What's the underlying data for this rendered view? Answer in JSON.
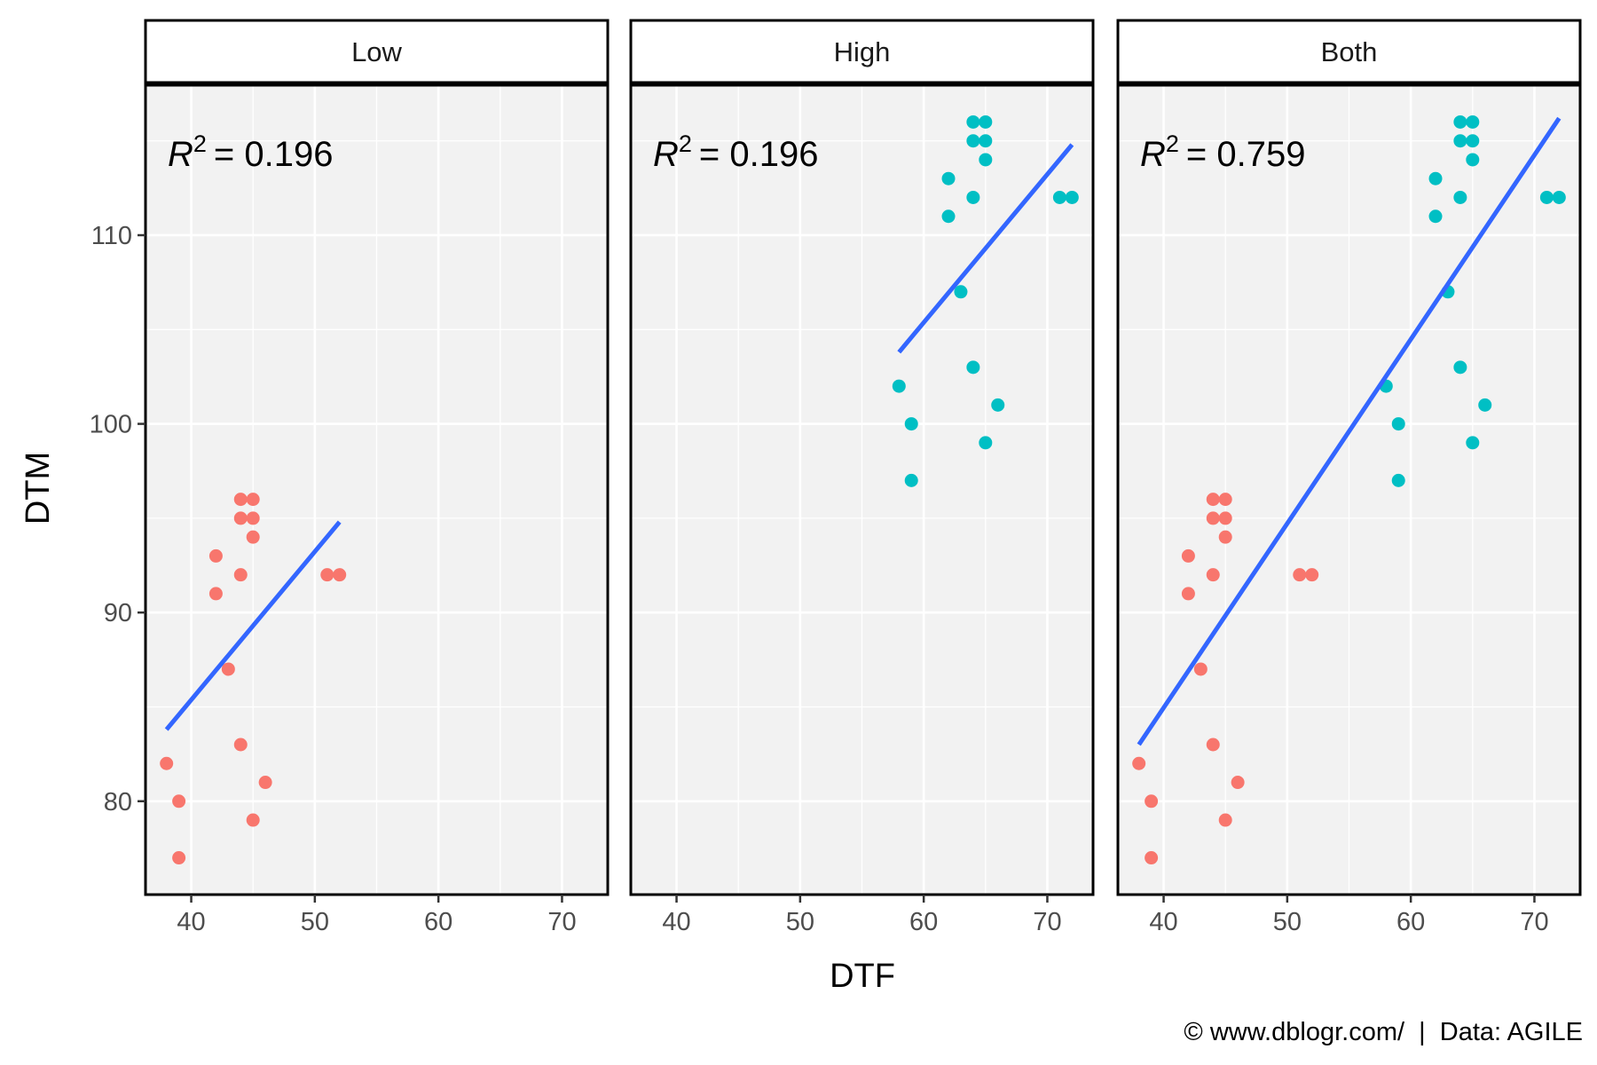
{
  "chart_data": {
    "type": "scatter",
    "xlabel": "DTF",
    "ylabel": "DTM",
    "xlim": [
      36.3,
      73.7
    ],
    "ylim": [
      75.05,
      117.95
    ],
    "x_ticks": [
      40,
      50,
      60,
      70
    ],
    "y_ticks": [
      80,
      90,
      100,
      110
    ],
    "grid": true,
    "legend": "none",
    "caption": "© www.dblogr.com/  |  Data: AGILE",
    "colors": {
      "low": "#F8766D",
      "high": "#00BFC4",
      "fit": "#3366FF",
      "panel_bg": "#F2F2F2",
      "grid": "#FFFFFF"
    },
    "panels": [
      {
        "strip": "Low",
        "r2_label": "R",
        "r2_sup": "2",
        "r2_value": "= 0.196",
        "points": [
          {
            "x": 38,
            "y": 82,
            "group": "low"
          },
          {
            "x": 39,
            "y": 80,
            "group": "low"
          },
          {
            "x": 39,
            "y": 77,
            "group": "low"
          },
          {
            "x": 42,
            "y": 93,
            "group": "low"
          },
          {
            "x": 42,
            "y": 91,
            "group": "low"
          },
          {
            "x": 43,
            "y": 87,
            "group": "low"
          },
          {
            "x": 44,
            "y": 96,
            "group": "low"
          },
          {
            "x": 44,
            "y": 95,
            "group": "low"
          },
          {
            "x": 44,
            "y": 92,
            "group": "low"
          },
          {
            "x": 44,
            "y": 83,
            "group": "low"
          },
          {
            "x": 45,
            "y": 96,
            "group": "low"
          },
          {
            "x": 45,
            "y": 95,
            "group": "low"
          },
          {
            "x": 45,
            "y": 94,
            "group": "low"
          },
          {
            "x": 45,
            "y": 79,
            "group": "low"
          },
          {
            "x": 46,
            "y": 81,
            "group": "low"
          },
          {
            "x": 51,
            "y": 92,
            "group": "low"
          },
          {
            "x": 52,
            "y": 92,
            "group": "low"
          }
        ],
        "fit": {
          "x": [
            38,
            52
          ],
          "y": [
            83.8,
            94.8
          ]
        }
      },
      {
        "strip": "High",
        "r2_label": "R",
        "r2_sup": "2",
        "r2_value": "= 0.196",
        "points": [
          {
            "x": 58,
            "y": 102,
            "group": "high"
          },
          {
            "x": 59,
            "y": 100,
            "group": "high"
          },
          {
            "x": 59,
            "y": 97,
            "group": "high"
          },
          {
            "x": 62,
            "y": 113,
            "group": "high"
          },
          {
            "x": 62,
            "y": 111,
            "group": "high"
          },
          {
            "x": 63,
            "y": 107,
            "group": "high"
          },
          {
            "x": 64,
            "y": 116,
            "group": "high"
          },
          {
            "x": 64,
            "y": 115,
            "group": "high"
          },
          {
            "x": 64,
            "y": 112,
            "group": "high"
          },
          {
            "x": 64,
            "y": 103,
            "group": "high"
          },
          {
            "x": 65,
            "y": 116,
            "group": "high"
          },
          {
            "x": 65,
            "y": 115,
            "group": "high"
          },
          {
            "x": 65,
            "y": 114,
            "group": "high"
          },
          {
            "x": 65,
            "y": 99,
            "group": "high"
          },
          {
            "x": 66,
            "y": 101,
            "group": "high"
          },
          {
            "x": 71,
            "y": 112,
            "group": "high"
          },
          {
            "x": 72,
            "y": 112,
            "group": "high"
          }
        ],
        "fit": {
          "x": [
            58,
            72
          ],
          "y": [
            103.8,
            114.8
          ]
        }
      },
      {
        "strip": "Both",
        "r2_label": "R",
        "r2_sup": "2",
        "r2_value": "= 0.759",
        "points": [
          {
            "x": 38,
            "y": 82,
            "group": "low"
          },
          {
            "x": 39,
            "y": 80,
            "group": "low"
          },
          {
            "x": 39,
            "y": 77,
            "group": "low"
          },
          {
            "x": 42,
            "y": 93,
            "group": "low"
          },
          {
            "x": 42,
            "y": 91,
            "group": "low"
          },
          {
            "x": 43,
            "y": 87,
            "group": "low"
          },
          {
            "x": 44,
            "y": 96,
            "group": "low"
          },
          {
            "x": 44,
            "y": 95,
            "group": "low"
          },
          {
            "x": 44,
            "y": 92,
            "group": "low"
          },
          {
            "x": 44,
            "y": 83,
            "group": "low"
          },
          {
            "x": 45,
            "y": 96,
            "group": "low"
          },
          {
            "x": 45,
            "y": 95,
            "group": "low"
          },
          {
            "x": 45,
            "y": 94,
            "group": "low"
          },
          {
            "x": 45,
            "y": 79,
            "group": "low"
          },
          {
            "x": 46,
            "y": 81,
            "group": "low"
          },
          {
            "x": 51,
            "y": 92,
            "group": "low"
          },
          {
            "x": 52,
            "y": 92,
            "group": "low"
          },
          {
            "x": 58,
            "y": 102,
            "group": "high"
          },
          {
            "x": 59,
            "y": 100,
            "group": "high"
          },
          {
            "x": 59,
            "y": 97,
            "group": "high"
          },
          {
            "x": 62,
            "y": 113,
            "group": "high"
          },
          {
            "x": 62,
            "y": 111,
            "group": "high"
          },
          {
            "x": 63,
            "y": 107,
            "group": "high"
          },
          {
            "x": 64,
            "y": 116,
            "group": "high"
          },
          {
            "x": 64,
            "y": 115,
            "group": "high"
          },
          {
            "x": 64,
            "y": 112,
            "group": "high"
          },
          {
            "x": 64,
            "y": 103,
            "group": "high"
          },
          {
            "x": 65,
            "y": 116,
            "group": "high"
          },
          {
            "x": 65,
            "y": 115,
            "group": "high"
          },
          {
            "x": 65,
            "y": 114,
            "group": "high"
          },
          {
            "x": 65,
            "y": 99,
            "group": "high"
          },
          {
            "x": 66,
            "y": 101,
            "group": "high"
          },
          {
            "x": 71,
            "y": 112,
            "group": "high"
          },
          {
            "x": 72,
            "y": 112,
            "group": "high"
          }
        ],
        "fit": {
          "x": [
            38,
            72
          ],
          "y": [
            83.0,
            116.2
          ]
        }
      }
    ]
  }
}
